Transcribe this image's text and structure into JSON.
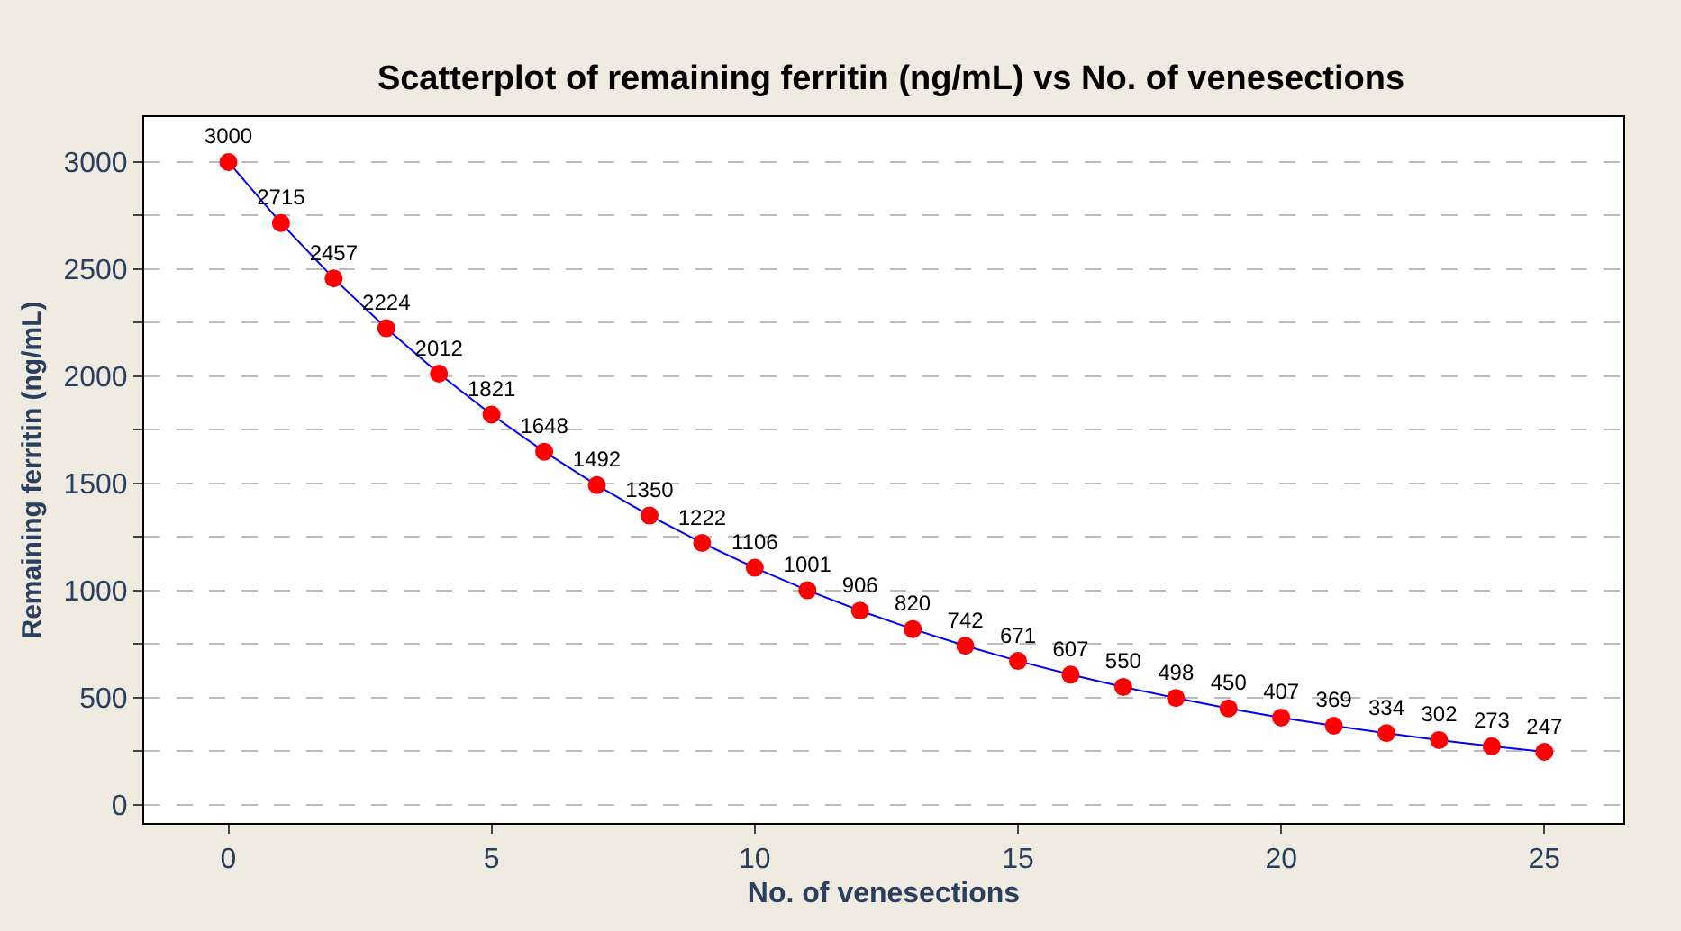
{
  "chart_data": {
    "type": "line",
    "title": "Scatterplot of remaining ferritin (ng/mL) vs No. of venesections",
    "xlabel": "No. of venesections",
    "ylabel": "Remaining ferritin (ng/mL)",
    "x": [
      0,
      1,
      2,
      3,
      4,
      5,
      6,
      7,
      8,
      9,
      10,
      11,
      12,
      13,
      14,
      15,
      16,
      17,
      18,
      19,
      20,
      21,
      22,
      23,
      24,
      25
    ],
    "series": [
      {
        "color": "#0000ff",
        "colors": [
          "#ff0000",
          "#ff0000",
          "#ff0000",
          "#ff0000",
          "#ff0000",
          "#ff0000",
          "#ff0000",
          "#ff0000",
          "#ff0000",
          "#ff0000",
          "#ff0000",
          "#ff0000",
          "#ff0000",
          "#ff0000",
          "#ff0000",
          "#ff0000",
          "#ff0000",
          "#ff0000",
          "#ff0000",
          "#ff0000",
          "#ff0000",
          "#ff0000",
          "#ff0000",
          "#ff0000",
          "#ff0000",
          "#ff0000"
        ],
        "values": [
          3000,
          2715,
          2457,
          2224,
          2012,
          1821,
          1648,
          1492,
          1350,
          1222,
          1106,
          1001,
          906,
          820,
          742,
          671,
          607,
          550,
          498,
          450,
          407,
          369,
          334,
          302,
          273,
          247
        ]
      }
    ],
    "xlim": [
      -1.6,
      26.5
    ],
    "xticks": [
      0,
      5,
      10,
      15,
      20,
      25
    ],
    "ylim": [
      -85,
      3210
    ],
    "yticks": [
      0,
      {
        "value": 250,
        "label": null
      },
      500,
      {
        "value": 750,
        "label": null
      },
      1000,
      {
        "value": 1250,
        "label": null
      },
      1500,
      {
        "value": 1750,
        "label": null
      },
      2000,
      {
        "value": 2250,
        "label": null
      },
      2500,
      {
        "value": 2750,
        "label": null
      },
      3000
    ],
    "grid": "y",
    "marker": "circle",
    "line_style": "solid",
    "data_labels": true,
    "legend": false
  }
}
